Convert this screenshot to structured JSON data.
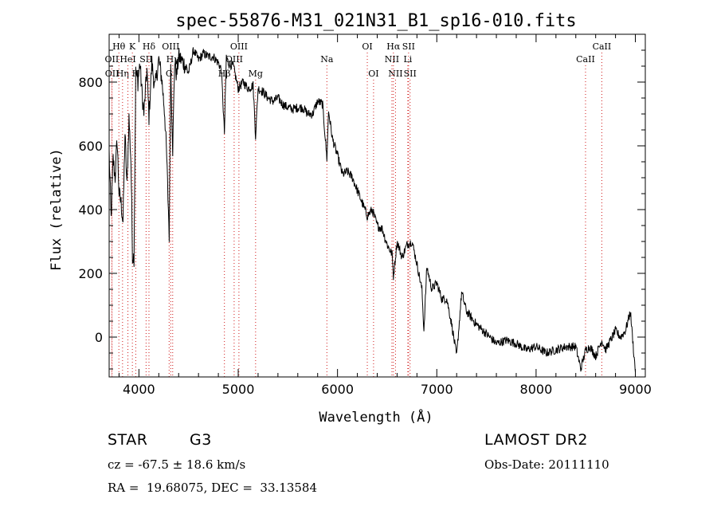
{
  "chart_data": {
    "type": "line",
    "title": "spec-55876-M31_021N31_B1_sp16-010.fits",
    "xlabel": "Wavelength (Å)",
    "ylabel": "Flux (relative)",
    "xlim": [
      3700,
      9100
    ],
    "ylim": [
      -125,
      950
    ],
    "xticks": [
      4000,
      5000,
      6000,
      7000,
      8000,
      9000
    ],
    "yticks": [
      0,
      200,
      400,
      600,
      800
    ],
    "grid": false,
    "series": [
      {
        "x": [
          3700,
          3720,
          3740,
          3760,
          3780,
          3800,
          3820,
          3840,
          3860,
          3880,
          3900,
          3920,
          3935,
          3950,
          3968,
          3990,
          4010,
          4030,
          4050,
          4080,
          4101,
          4130,
          4160,
          4200,
          4230,
          4260,
          4280,
          4305,
          4320,
          4340,
          4360,
          4380,
          4400,
          4450,
          4500,
          4550,
          4600,
          4650,
          4700,
          4750,
          4800,
          4830,
          4861,
          4880,
          4900,
          4950,
          5000,
          5050,
          5100,
          5150,
          5175,
          5200,
          5250,
          5300,
          5350,
          5400,
          5450,
          5500,
          5550,
          5600,
          5650,
          5700,
          5750,
          5800,
          5850,
          5893,
          5910,
          5950,
          6000,
          6050,
          6100,
          6150,
          6200,
          6250,
          6300,
          6350,
          6400,
          6450,
          6500,
          6550,
          6563,
          6600,
          6650,
          6700,
          6750,
          6800,
          6850,
          6870,
          6900,
          6950,
          7000,
          7050,
          7100,
          7150,
          7200,
          7250,
          7300,
          7400,
          7500,
          7600,
          7700,
          7800,
          7900,
          8000,
          8100,
          8200,
          8300,
          8400,
          8450,
          8500,
          8542,
          8600,
          8662,
          8700,
          8750,
          8800,
          8850,
          8900,
          8950,
          9000
        ],
        "y": [
          580,
          370,
          560,
          500,
          620,
          450,
          420,
          360,
          640,
          470,
          690,
          550,
          260,
          250,
          830,
          800,
          860,
          770,
          700,
          840,
          690,
          860,
          780,
          870,
          810,
          700,
          560,
          320,
          850,
          590,
          870,
          820,
          880,
          860,
          830,
          900,
          870,
          890,
          880,
          880,
          860,
          840,
          640,
          880,
          860,
          850,
          780,
          800,
          780,
          790,
          630,
          780,
          770,
          750,
          740,
          750,
          730,
          720,
          715,
          720,
          720,
          700,
          700,
          740,
          730,
          560,
          710,
          620,
          570,
          510,
          520,
          500,
          460,
          420,
          380,
          400,
          350,
          340,
          290,
          260,
          190,
          300,
          250,
          290,
          300,
          230,
          150,
          20,
          220,
          150,
          170,
          120,
          120,
          40,
          -60,
          140,
          80,
          40,
          10,
          -20,
          -10,
          -20,
          -40,
          -30,
          -50,
          -40,
          -30,
          -30,
          -100,
          -40,
          -30,
          -60,
          -10,
          -40,
          -10,
          20,
          0,
          20,
          80,
          -110
        ]
      }
    ],
    "line_markers": [
      {
        "label": "Hθ",
        "x": 3798,
        "row": 0
      },
      {
        "label": "OII",
        "x": 3727,
        "row": 1
      },
      {
        "label": "OII",
        "x": 3729,
        "row": 2
      },
      {
        "label": "Hη",
        "x": 3835,
        "row": 2
      },
      {
        "label": "HeI",
        "x": 3889,
        "row": 1
      },
      {
        "label": "K",
        "x": 3934,
        "row": 0
      },
      {
        "label": "H",
        "x": 3968,
        "row": 2
      },
      {
        "label": "SII",
        "x": 4072,
        "row": 1
      },
      {
        "label": "Hδ",
        "x": 4101,
        "row": 0
      },
      {
        "label": "G",
        "x": 4304,
        "row": 2
      },
      {
        "label": "OIII",
        "x": 4320,
        "row": 0
      },
      {
        "label": "Hγ",
        "x": 4340,
        "row": 1
      },
      {
        "label": "Hβ",
        "x": 4861,
        "row": 2
      },
      {
        "label": "OIII",
        "x": 4959,
        "row": 1
      },
      {
        "label": "OIII",
        "x": 5007,
        "row": 0
      },
      {
        "label": "Mg",
        "x": 5175,
        "row": 2
      },
      {
        "label": "Na",
        "x": 5893,
        "row": 1
      },
      {
        "label": "OI",
        "x": 6300,
        "row": 0
      },
      {
        "label": "OI",
        "x": 6363,
        "row": 2
      },
      {
        "label": "NII",
        "x": 6548,
        "row": 1
      },
      {
        "label": "NII",
        "x": 6584,
        "row": 2
      },
      {
        "label": "Hα",
        "x": 6563,
        "row": 0
      },
      {
        "label": "Li",
        "x": 6708,
        "row": 1
      },
      {
        "label": "SII",
        "x": 6716,
        "row": 0
      },
      {
        "label": "SII",
        "x": 6731,
        "row": 2
      },
      {
        "label": "CaII",
        "x": 8498,
        "row": 1
      },
      {
        "label": "CaII",
        "x": 8662,
        "row": 0
      }
    ]
  },
  "info": {
    "object_class": "STAR",
    "subclass": "G3",
    "survey": "LAMOST DR2",
    "redshift_text": "cz = -67.5 ± 18.6 km/s",
    "obs_date_text": "Obs-Date: 20111110",
    "coords_text": "RA =  19.68075, DEC =  33.13584"
  }
}
